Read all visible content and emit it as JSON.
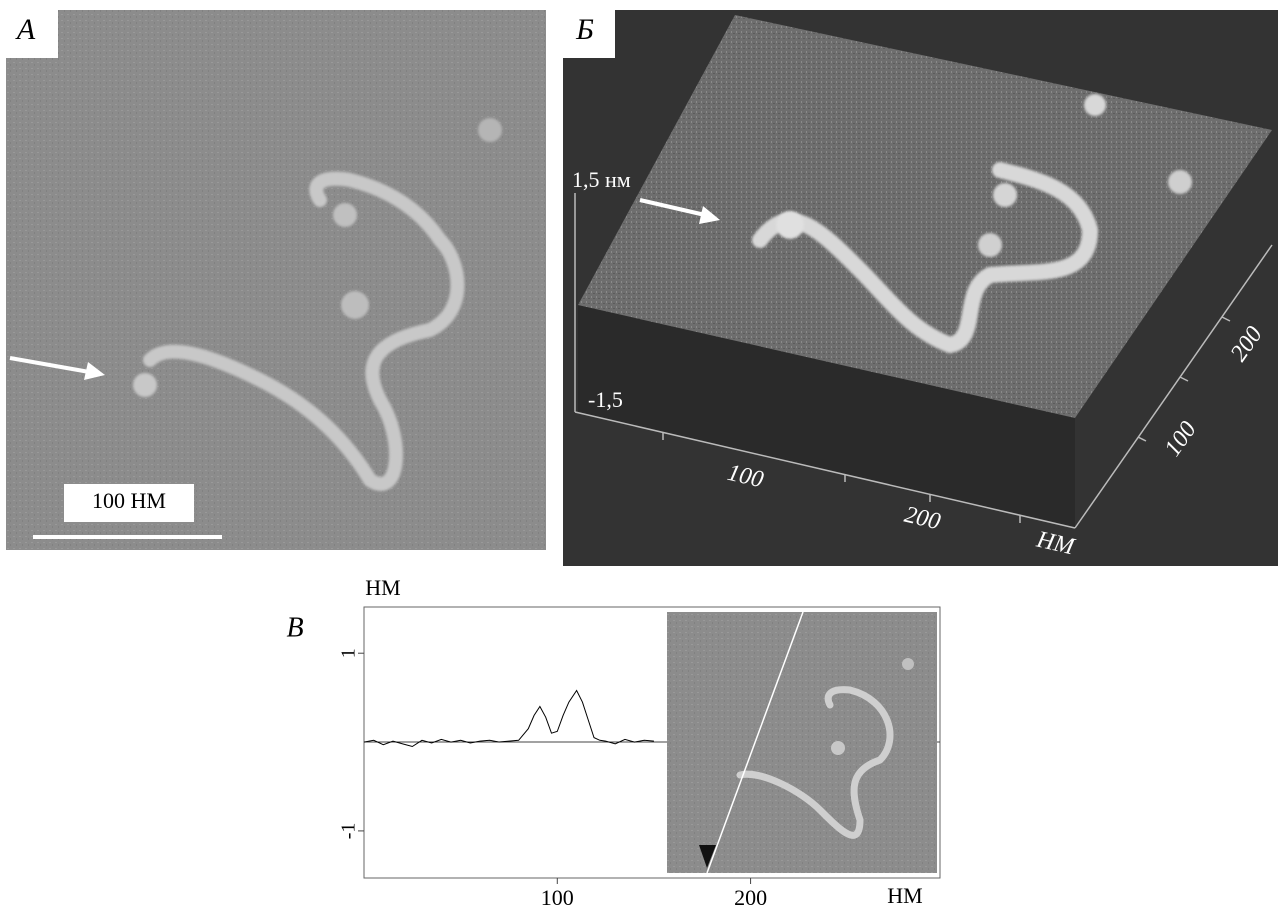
{
  "panel_a": {
    "label": "А",
    "scale_bar": "100 НМ"
  },
  "panel_b": {
    "label": "Б",
    "z_top": "1,5 нм",
    "z_bottom": "-1,5",
    "x_ticks": [
      "100",
      "200"
    ],
    "x_unit": "НМ",
    "y_ticks": [
      "100",
      "200"
    ]
  },
  "chart_data": {
    "type": "line",
    "label": "В",
    "y_unit": "НМ",
    "x_unit": "НМ",
    "x": [
      0,
      5,
      10,
      15,
      20,
      25,
      30,
      35,
      40,
      45,
      50,
      55,
      60,
      65,
      70,
      75,
      80,
      85,
      88,
      91,
      94,
      97,
      100,
      103,
      106,
      110,
      113,
      116,
      119,
      122,
      125,
      130,
      135,
      140,
      145,
      150
    ],
    "series": [
      {
        "color": "#000000",
        "values": [
          0,
          0.02,
          -0.03,
          0.01,
          -0.02,
          -0.05,
          0.02,
          -0.01,
          0.03,
          0,
          0.02,
          -0.01,
          0.01,
          0.02,
          0,
          0.01,
          0.02,
          0.15,
          0.3,
          0.4,
          0.28,
          0.1,
          0.12,
          0.3,
          0.45,
          0.58,
          0.45,
          0.25,
          0.05,
          0.02,
          0.01,
          -0.02,
          0.03,
          0,
          0.02,
          0.01
        ]
      }
    ],
    "xlim": [
      0,
      298
    ],
    "ylim": [
      -1.53,
      1.52
    ],
    "xticks": [
      100,
      200
    ],
    "yticks": [
      -1,
      1
    ]
  }
}
